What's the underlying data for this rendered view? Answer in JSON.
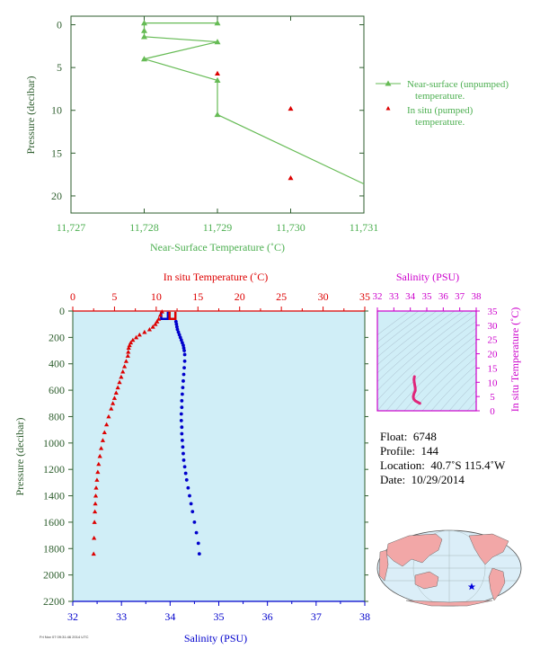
{
  "colors": {
    "axis_green": "#2e5e2e",
    "label_green": "#4caf50",
    "series_green": "#66bb55",
    "red": "#dd0000",
    "blue": "#0000cc",
    "magenta": "#cc00cc",
    "pink": "#e0257a",
    "panel_blue": "#d0eef7",
    "land": "#f2a7a7",
    "ocean": "#dbeef8"
  },
  "top_chart": {
    "xlabel": "Near-Surface Temperature (˚C)",
    "ylabel": "Pressure (decibar)",
    "x_ticks": [
      "11,727",
      "11,728",
      "11,729",
      "11,730",
      "11,731"
    ],
    "y_ticks": [
      "0",
      "5",
      "10",
      "15",
      "20"
    ],
    "legend": {
      "unpumped": "Near-surface (unpumped)",
      "unpumped_2": "temperature.",
      "pumped": "In situ (pumped)",
      "pumped_2": "temperature."
    }
  },
  "main_chart": {
    "top_label": "In situ Temperature (˚C)",
    "bottom_label": "Salinity (PSU)",
    "ylabel": "Pressure (decibar)",
    "top_ticks": [
      "0",
      "5",
      "10",
      "15",
      "20",
      "25",
      "30",
      "35"
    ],
    "bottom_ticks": [
      "32",
      "33",
      "34",
      "35",
      "36",
      "37",
      "38"
    ],
    "y_ticks": [
      "0",
      "200",
      "400",
      "600",
      "800",
      "1000",
      "1200",
      "1400",
      "1600",
      "1800",
      "2000",
      "2200"
    ]
  },
  "ts_chart": {
    "top_label": "Salinity (PSU)",
    "right_label": "In situ Temperature (˚C)",
    "top_ticks": [
      "32",
      "33",
      "34",
      "35",
      "36",
      "37",
      "38"
    ],
    "right_ticks": [
      "35",
      "30",
      "25",
      "20",
      "15",
      "10",
      "5",
      "0"
    ]
  },
  "info": {
    "float_label": "Float:",
    "float": "6748",
    "profile_label": "Profile:",
    "profile": "144",
    "location_label": "Location:",
    "location": "40.7˚S  115.4˚W",
    "date_label": "Date:",
    "date": "10/29/2014"
  },
  "footer_tiny": "Fri Nov 07 09:31:46 2014 UTC",
  "chart_data": [
    {
      "type": "line",
      "title": "",
      "xlabel": "Near-Surface Temperature (˚C)",
      "ylabel": "Pressure (decibar)",
      "xlim": [
        11.727,
        11.731
      ],
      "ylim": [
        22,
        -1
      ],
      "grid": false,
      "legend_position": "right",
      "series": [
        {
          "name": "Near-surface (unpumped) temperature.",
          "style": "line+triangle",
          "x": [
            11.729,
            11.728,
            11.728,
            11.728,
            11.729,
            11.728,
            11.729,
            11.729,
            11.731
          ],
          "y": [
            -0.2,
            -0.2,
            0.7,
            1.4,
            2.0,
            4.0,
            6.5,
            10.5,
            18.6
          ]
        },
        {
          "name": "In situ (pumped) temperature.",
          "style": "triangle",
          "x": [
            11.729,
            11.73,
            11.73
          ],
          "y": [
            5.7,
            9.8,
            17.9
          ]
        }
      ]
    },
    {
      "type": "scatter",
      "title": "",
      "ylabel": "Pressure (decibar)",
      "ylim": [
        2200,
        0
      ],
      "series": [
        {
          "name": "In situ Temperature (˚C)",
          "axis": "top",
          "xlim": [
            0,
            35
          ],
          "x": [
            10.7,
            10.5,
            10.3,
            10.1,
            9.9,
            9.6,
            9.2,
            8.6,
            8.0,
            7.6,
            7.2,
            6.95,
            6.8,
            6.7,
            6.65,
            6.6,
            6.4,
            6.2,
            6.0,
            5.8,
            5.6,
            5.4,
            5.2,
            5.0,
            4.8,
            4.6,
            4.3,
            4.05,
            3.8,
            3.6,
            3.4,
            3.25,
            3.1,
            3.0,
            2.9,
            2.8,
            2.75,
            2.7,
            2.65,
            2.6,
            2.55,
            2.5
          ],
          "y": [
            5,
            30,
            60,
            80,
            100,
            120,
            140,
            160,
            180,
            200,
            220,
            240,
            260,
            280,
            310,
            340,
            380,
            420,
            460,
            500,
            540,
            580,
            620,
            660,
            700,
            740,
            800,
            860,
            920,
            980,
            1040,
            1100,
            1160,
            1220,
            1280,
            1340,
            1400,
            1460,
            1520,
            1600,
            1720,
            1840
          ]
        },
        {
          "name": "Salinity (PSU)",
          "axis": "bottom",
          "xlim": [
            32,
            38
          ],
          "x": [
            34.12,
            34.13,
            34.14,
            34.15,
            34.17,
            34.19,
            34.21,
            34.23,
            34.25,
            34.27,
            34.28,
            34.29,
            34.3,
            34.3,
            34.29,
            34.28,
            34.27,
            34.26,
            34.25,
            34.24,
            34.24,
            34.23,
            34.23,
            34.24,
            34.24,
            34.25,
            34.26,
            34.27,
            34.28,
            34.3,
            34.32,
            34.34,
            34.37,
            34.4,
            34.43,
            34.46,
            34.5,
            34.54,
            34.58,
            34.6
          ],
          "y": [
            80,
            100,
            120,
            140,
            160,
            180,
            200,
            220,
            240,
            260,
            280,
            300,
            330,
            380,
            430,
            480,
            530,
            580,
            630,
            680,
            730,
            780,
            830,
            880,
            930,
            980,
            1030,
            1080,
            1130,
            1180,
            1230,
            1280,
            1340,
            1400,
            1460,
            1520,
            1600,
            1680,
            1760,
            1840
          ]
        }
      ]
    },
    {
      "type": "line",
      "title": "",
      "xlabel": "Salinity (PSU)",
      "ylabel": "In situ Temperature (˚C)",
      "xlim": [
        32,
        38
      ],
      "ylim": [
        0,
        35
      ],
      "series": [
        {
          "name": "",
          "x": [
            34.25,
            34.22,
            34.24,
            34.27,
            34.3,
            34.3,
            34.26,
            34.22,
            34.18,
            34.2,
            34.3,
            34.45,
            34.58
          ],
          "y": [
            12,
            11,
            10,
            9,
            8,
            7,
            6.5,
            6,
            5,
            4.2,
            3.5,
            3.0,
            2.6
          ]
        }
      ]
    }
  ]
}
